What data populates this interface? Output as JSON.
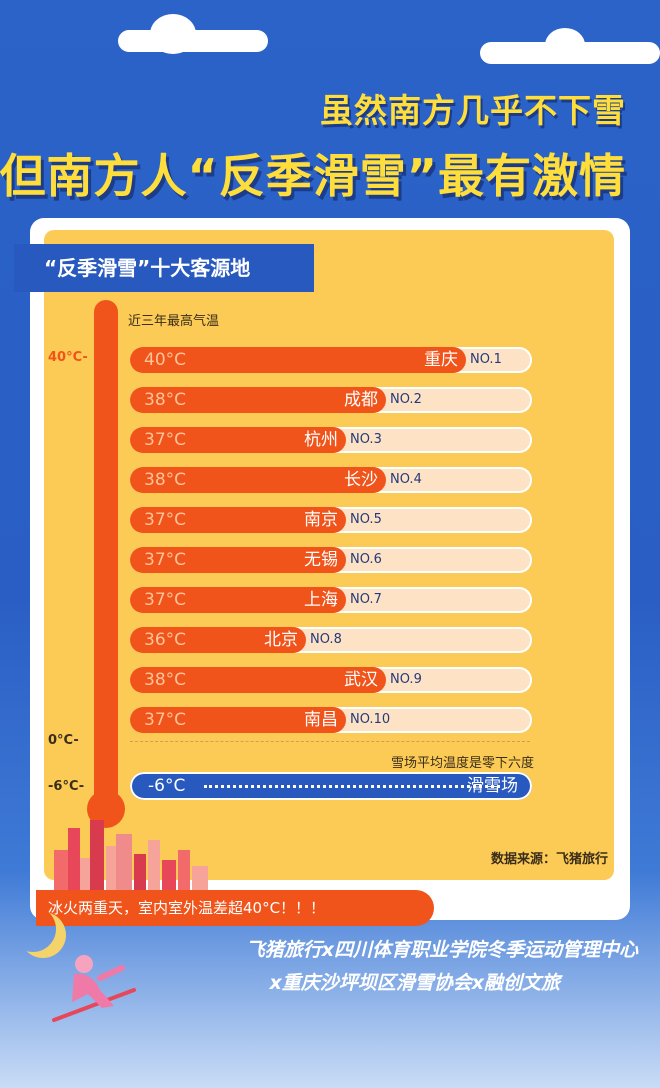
{
  "headline": {
    "line1": "虽然南方几乎不下雪",
    "line2": "但南方人“反季滑雪”最有激情"
  },
  "subtitle": "“反季滑雪”十大客源地",
  "note_top": "近三年最高气温",
  "ticks": [
    "40°C-",
    "0°C-",
    "-6°C-"
  ],
  "ski_note": "雪场平均温度是零下六度",
  "source": "数据来源：飞猪旅行",
  "banner": "冰火两重天，室内室外温差超40°C！！！",
  "footer": {
    "line1": "飞猪旅行x四川体育职业学院冬季运动管理中心",
    "line2": "x重庆沙坪坝区滑雪协会x融创文旅"
  },
  "colors": {
    "accent": "#f0541a",
    "blue": "#2859bf",
    "card": "#fbcb55",
    "headline": "#ffde3c"
  },
  "chart_data": {
    "type": "bar",
    "orientation": "horizontal",
    "categories": [
      "重庆",
      "成都",
      "杭州",
      "长沙",
      "南京",
      "无锡",
      "上海",
      "北京",
      "武汉",
      "南昌"
    ],
    "ranks": [
      "NO.1",
      "NO.2",
      "NO.3",
      "NO.4",
      "NO.5",
      "NO.6",
      "NO.7",
      "NO.8",
      "NO.9",
      "NO.10"
    ],
    "temp_labels": [
      "40°C",
      "38°C",
      "37°C",
      "38°C",
      "37°C",
      "37°C",
      "37°C",
      "36°C",
      "38°C",
      "37°C"
    ],
    "values": [
      40,
      38,
      37,
      38,
      37,
      37,
      37,
      36,
      38,
      37
    ],
    "ski_resort": {
      "label": "滑雪场",
      "temp_label": "-6°C",
      "value": -6
    },
    "title": "“反季滑雪”十大客源地"
  }
}
